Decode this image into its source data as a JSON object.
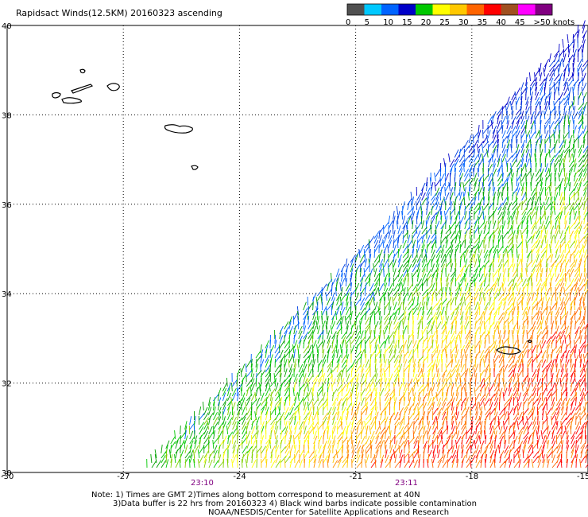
{
  "title": "Rapidsact Winds(12.5KM) 20160323 ascending",
  "legend": {
    "labels": [
      "0",
      "5",
      "10",
      "15",
      "20",
      "25",
      "30",
      "35",
      "40",
      "45",
      ">50 knots"
    ],
    "colors": [
      "#505050",
      "#00c8ff",
      "#0064ff",
      "#0000c8",
      "#00c800",
      "#ffff00",
      "#ffc800",
      "#ff6400",
      "#ff0000",
      "#a05020",
      "#ff00ff",
      "#800080"
    ]
  },
  "map": {
    "lat_range": [
      30,
      40
    ],
    "lon_range": [
      -30,
      -15
    ],
    "lat_ticks": [
      "40",
      "38",
      "36",
      "34",
      "32",
      "30"
    ],
    "lon_ticks": [
      "-30",
      "-27",
      "-24",
      "-21",
      "-18",
      "-15"
    ],
    "times": [
      "23:10",
      "23:11"
    ],
    "gridlines": "dotted"
  },
  "notes": {
    "line1": "Note: 1) Times are GMT 2)Times along bottom correspond to measurement at 40N",
    "line2": "3)Data buffer is 22 hrs from 20160323 4) Black wind barbs indicate possible contamination",
    "line3": "NOAA/NESDIS/Center for Satellite Applications and Research"
  }
}
